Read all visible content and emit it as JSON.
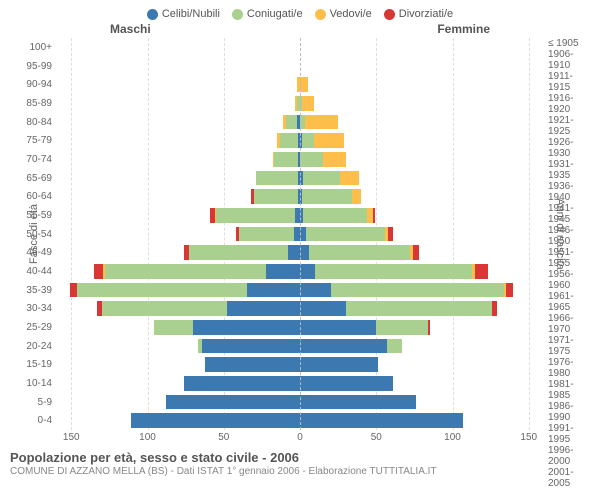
{
  "type": "population-pyramid",
  "legend": [
    {
      "label": "Celibi/Nubili",
      "color": "#3b79b0"
    },
    {
      "label": "Coniugati/e",
      "color": "#a9d08e"
    },
    {
      "label": "Vedovi/e",
      "color": "#febe4a"
    },
    {
      "label": "Divorziati/e",
      "color": "#d93636"
    }
  ],
  "headers": {
    "male": "Maschi",
    "female": "Femmine"
  },
  "y_left_label": "Fasce di età",
  "y_right_label": "Anni di nascita",
  "x_max": 160,
  "x_ticks": [
    150,
    100,
    50,
    0,
    50,
    100,
    150
  ],
  "background_color": "#ffffff",
  "grid_color": "#e0e0e0",
  "center_line_color": "#bbbbbb",
  "text_color": "#666666",
  "title": "Popolazione per età, sesso e stato civile - 2006",
  "subtitle": "COMUNE DI AZZANO MELLA (BS) - Dati ISTAT 1° gennaio 2006 - Elaborazione TUTTITALIA.IT",
  "rows": [
    {
      "age": "100+",
      "birth": "≤ 1905",
      "m": [
        0,
        0,
        0,
        0
      ],
      "f": [
        0,
        0,
        0,
        0
      ]
    },
    {
      "age": "95-99",
      "birth": "1906-1910",
      "m": [
        0,
        0,
        0,
        0
      ],
      "f": [
        0,
        0,
        0,
        0
      ]
    },
    {
      "age": "90-94",
      "birth": "1911-1915",
      "m": [
        0,
        0,
        2,
        0
      ],
      "f": [
        0,
        0,
        5,
        0
      ]
    },
    {
      "age": "85-89",
      "birth": "1916-1920",
      "m": [
        0,
        2,
        1,
        0
      ],
      "f": [
        0,
        1,
        8,
        0
      ]
    },
    {
      "age": "80-84",
      "birth": "1921-1925",
      "m": [
        2,
        7,
        2,
        0
      ],
      "f": [
        0,
        3,
        22,
        0
      ]
    },
    {
      "age": "75-79",
      "birth": "1926-1930",
      "m": [
        1,
        12,
        2,
        0
      ],
      "f": [
        1,
        8,
        20,
        0
      ]
    },
    {
      "age": "70-74",
      "birth": "1931-1935",
      "m": [
        1,
        16,
        1,
        0
      ],
      "f": [
        0,
        15,
        15,
        0
      ]
    },
    {
      "age": "65-69",
      "birth": "1936-1940",
      "m": [
        1,
        28,
        0,
        0
      ],
      "f": [
        2,
        24,
        13,
        0
      ]
    },
    {
      "age": "60-64",
      "birth": "1941-1945",
      "m": [
        1,
        29,
        0,
        2
      ],
      "f": [
        1,
        33,
        6,
        0
      ]
    },
    {
      "age": "55-59",
      "birth": "1946-1950",
      "m": [
        3,
        52,
        1,
        3
      ],
      "f": [
        2,
        42,
        4,
        1
      ]
    },
    {
      "age": "50-54",
      "birth": "1951-1955",
      "m": [
        4,
        36,
        0,
        2
      ],
      "f": [
        4,
        52,
        2,
        3
      ]
    },
    {
      "age": "45-49",
      "birth": "1956-1960",
      "m": [
        8,
        65,
        0,
        3
      ],
      "f": [
        6,
        66,
        2,
        4
      ]
    },
    {
      "age": "40-44",
      "birth": "1961-1965",
      "m": [
        22,
        106,
        1,
        6
      ],
      "f": [
        10,
        103,
        2,
        8
      ]
    },
    {
      "age": "35-39",
      "birth": "1966-1970",
      "m": [
        35,
        111,
        0,
        5
      ],
      "f": [
        20,
        114,
        1,
        5
      ]
    },
    {
      "age": "30-34",
      "birth": "1971-1975",
      "m": [
        48,
        82,
        0,
        3
      ],
      "f": [
        30,
        96,
        0,
        3
      ]
    },
    {
      "age": "25-29",
      "birth": "1976-1980",
      "m": [
        70,
        26,
        0,
        0
      ],
      "f": [
        50,
        34,
        0,
        1
      ]
    },
    {
      "age": "20-24",
      "birth": "1981-1985",
      "m": [
        64,
        3,
        0,
        0
      ],
      "f": [
        57,
        10,
        0,
        0
      ]
    },
    {
      "age": "15-19",
      "birth": "1986-1990",
      "m": [
        62,
        0,
        0,
        0
      ],
      "f": [
        51,
        0,
        0,
        0
      ]
    },
    {
      "age": "10-14",
      "birth": "1991-1995",
      "m": [
        76,
        0,
        0,
        0
      ],
      "f": [
        61,
        0,
        0,
        0
      ]
    },
    {
      "age": "5-9",
      "birth": "1996-2000",
      "m": [
        88,
        0,
        0,
        0
      ],
      "f": [
        76,
        0,
        0,
        0
      ]
    },
    {
      "age": "0-4",
      "birth": "2001-2005",
      "m": [
        111,
        0,
        0,
        0
      ],
      "f": [
        107,
        0,
        0,
        0
      ]
    }
  ]
}
